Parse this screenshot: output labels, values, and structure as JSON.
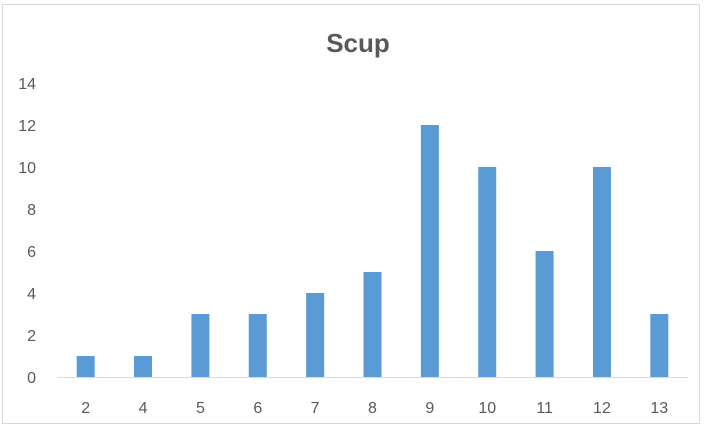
{
  "chart_data": {
    "type": "bar",
    "title": "Scup",
    "xlabel": "",
    "ylabel": "",
    "categories": [
      "2",
      "4",
      "5",
      "6",
      "7",
      "8",
      "9",
      "10",
      "11",
      "12",
      "13"
    ],
    "values": [
      1,
      1,
      3,
      3,
      4,
      5,
      12,
      10,
      6,
      10,
      3
    ],
    "ylim": [
      0,
      14
    ],
    "yticks": [
      0,
      2,
      4,
      6,
      8,
      10,
      12,
      14
    ],
    "grid": false,
    "legend": "none",
    "bar_color": "#5b9bd5",
    "axis_color": "#d9d9d9",
    "text_color": "#595959"
  }
}
